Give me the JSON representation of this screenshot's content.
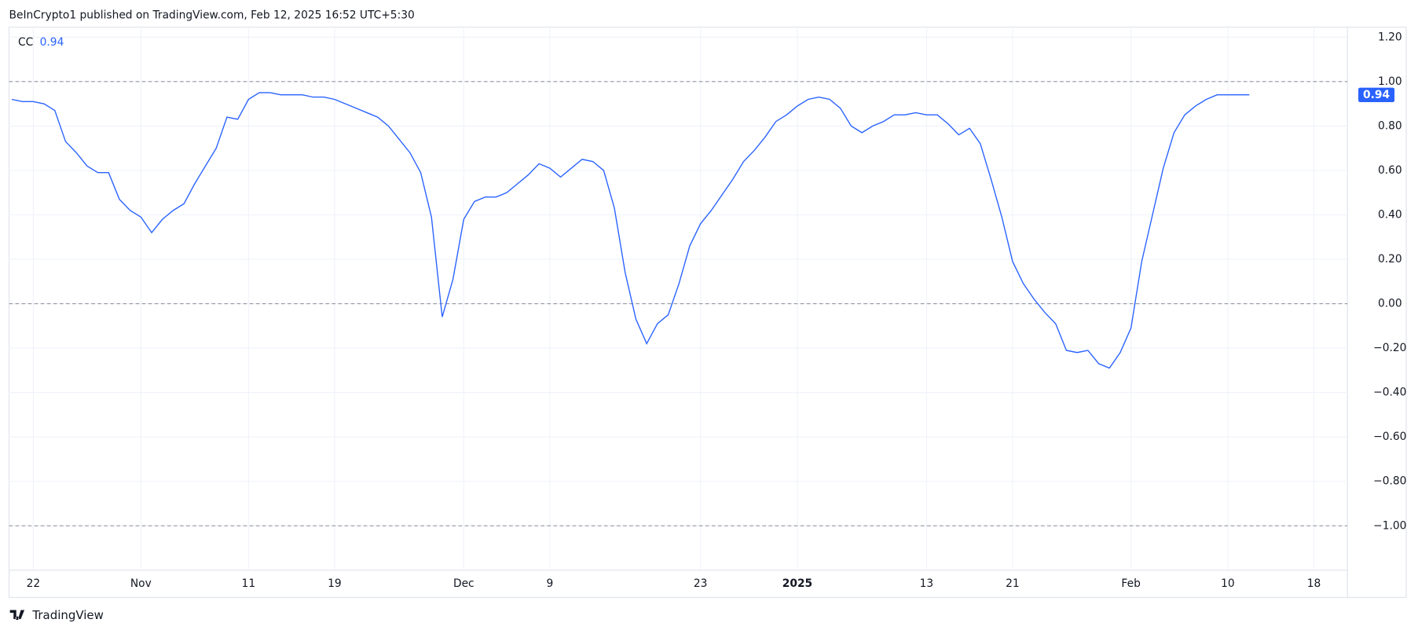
{
  "header": "BeInCrypto1 published on TradingView.com, Feb 12, 2025 16:52 UTC+5:30",
  "footer": "TradingView",
  "chart_data": {
    "type": "line",
    "categories": [
      null,
      null,
      "22",
      null,
      null,
      null,
      null,
      null,
      null,
      null,
      null,
      null,
      "Nov",
      null,
      null,
      null,
      null,
      null,
      null,
      null,
      null,
      null,
      "11",
      null,
      null,
      null,
      null,
      null,
      null,
      null,
      "19",
      null,
      null,
      null,
      null,
      null,
      null,
      null,
      null,
      null,
      null,
      null,
      "Dec",
      null,
      null,
      null,
      null,
      null,
      null,
      null,
      "9",
      null,
      null,
      null,
      null,
      null,
      null,
      null,
      null,
      null,
      null,
      null,
      null,
      null,
      "23",
      null,
      null,
      null,
      null,
      null,
      null,
      null,
      null,
      "2025",
      null,
      null,
      null,
      null,
      null,
      null,
      null,
      null,
      null,
      null,
      null,
      "13",
      null,
      null,
      null,
      null,
      null,
      null,
      null,
      "21",
      null,
      null,
      null,
      null,
      null,
      null,
      null,
      null,
      null,
      null,
      "Feb",
      null,
      null,
      null,
      null,
      null,
      null,
      null,
      null,
      "10",
      null,
      null,
      null,
      null,
      null,
      null,
      null,
      "18",
      null,
      null,
      null
    ],
    "series": [
      {
        "name": "CC",
        "color": "#2962ff",
        "values": [
          0.92,
          0.91,
          0.91,
          0.9,
          0.87,
          0.73,
          0.68,
          0.62,
          0.59,
          0.59,
          0.47,
          0.42,
          0.39,
          0.32,
          0.38,
          0.42,
          0.45,
          0.54,
          0.62,
          0.7,
          0.84,
          0.83,
          0.92,
          0.95,
          0.95,
          0.94,
          0.94,
          0.94,
          0.93,
          0.93,
          0.92,
          0.9,
          0.88,
          0.86,
          0.84,
          0.8,
          0.74,
          0.68,
          0.59,
          0.39,
          -0.06,
          0.11,
          0.38,
          0.46,
          0.48,
          0.48,
          0.5,
          0.54,
          0.58,
          0.63,
          0.61,
          0.57,
          0.61,
          0.65,
          0.64,
          0.6,
          0.43,
          0.14,
          -0.07,
          -0.18,
          -0.09,
          -0.05,
          0.09,
          0.26,
          0.36,
          0.42,
          0.49,
          0.56,
          0.64,
          0.69,
          0.75,
          0.82,
          0.85,
          0.89,
          0.92,
          0.93,
          0.92,
          0.88,
          0.8,
          0.77,
          0.8,
          0.82,
          0.85,
          0.85,
          0.86,
          0.85,
          0.85,
          0.81,
          0.76,
          0.79,
          0.72,
          0.56,
          0.39,
          0.19,
          0.09,
          0.02,
          -0.04,
          -0.09,
          -0.21,
          -0.22,
          -0.21,
          -0.27,
          -0.29,
          -0.22,
          -0.11,
          0.19,
          0.4,
          0.61,
          0.77,
          0.85,
          0.89,
          0.92,
          0.94,
          0.94,
          0.94,
          0.94,
          null,
          null,
          null,
          null,
          null,
          null,
          null,
          null,
          null
        ]
      }
    ],
    "last_value": {
      "value": 0.94,
      "label": "0.94"
    },
    "ylim": [
      -1.2,
      1.245
    ],
    "yticks": [
      {
        "value": 1.2,
        "label": "1.20"
      },
      {
        "value": 1,
        "label": "1.00"
      },
      {
        "value": 0.8,
        "label": "0.80"
      },
      {
        "value": 0.6,
        "label": "0.60"
      },
      {
        "value": 0.4,
        "label": "0.40"
      },
      {
        "value": 0.2,
        "label": "0.20"
      },
      {
        "value": 0,
        "label": "0.00"
      },
      {
        "value": -0.2,
        "label": "−0.20"
      },
      {
        "value": -0.4,
        "label": "−0.40"
      },
      {
        "value": -0.6,
        "label": "−0.60"
      },
      {
        "value": -0.8,
        "label": "−0.80"
      },
      {
        "value": -1,
        "label": "−1.00"
      }
    ],
    "reference_lines": [
      1,
      0,
      -1
    ],
    "grid": true,
    "emphasis_category": "2025"
  }
}
